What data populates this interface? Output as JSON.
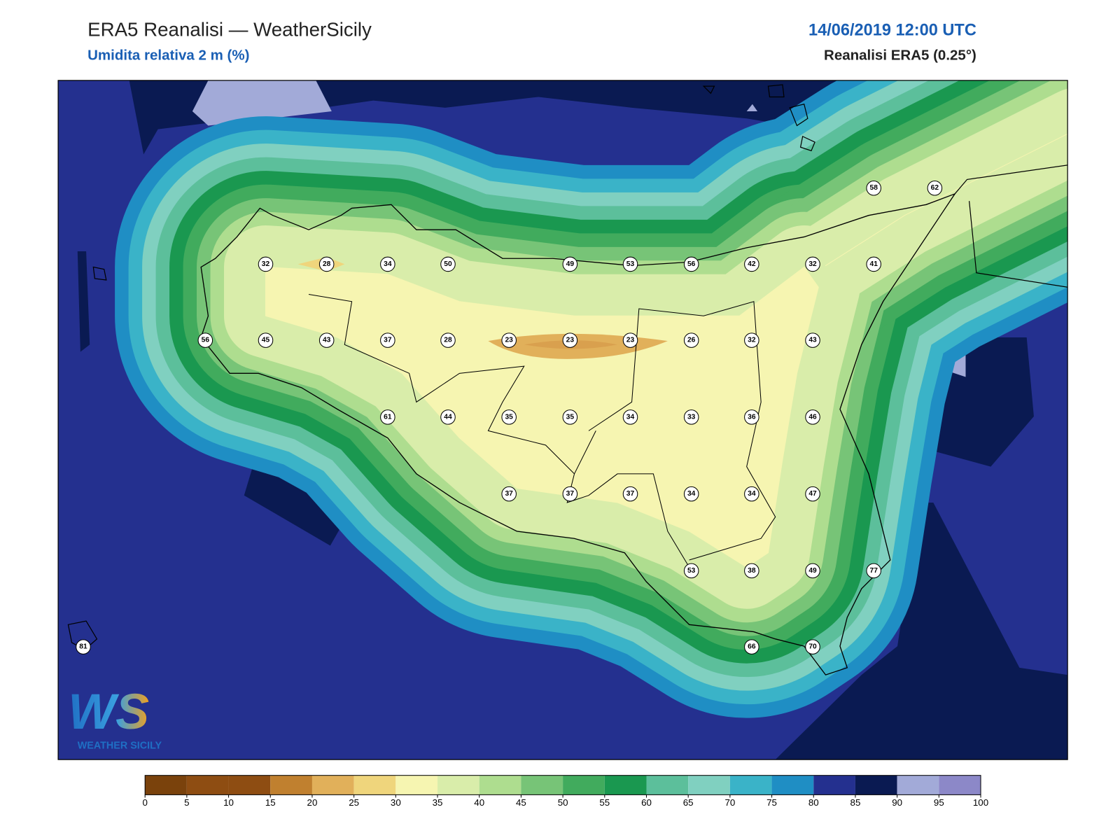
{
  "header": {
    "title": "ERA5 Reanalisi — WeatherSicily",
    "subtitle": "Umidita relativa 2 m (%)",
    "datetime": "14/06/2019 12:00 UTC",
    "source": "Reanalisi ERA5 (0.25°)"
  },
  "stations": [
    32,
    28,
    34,
    50,
    49,
    53,
    56,
    42,
    32,
    41,
    58,
    62,
    56,
    45,
    43,
    37,
    28,
    23,
    23,
    23,
    26,
    32,
    43,
    61,
    44,
    35,
    35,
    34,
    33,
    36,
    46,
    37,
    37,
    37,
    34,
    34,
    47,
    53,
    38,
    49,
    77,
    81,
    66,
    70
  ],
  "colorbar": {
    "ticks": [
      0,
      5,
      10,
      15,
      20,
      25,
      30,
      35,
      40,
      45,
      50,
      55,
      60,
      65,
      70,
      75,
      80,
      85,
      90,
      95,
      100
    ],
    "colors": [
      "#7a420c",
      "#8e4d12",
      "#8e4d12",
      "#c0802f",
      "#e1b05a",
      "#efd57c",
      "#f6f5b1",
      "#d9edaa",
      "#aedd8f",
      "#77c477",
      "#41ab5d",
      "#1a9850",
      "#5cbf9b",
      "#80d0c0",
      "#3ab3c8",
      "#1f8ec4",
      "#24308f",
      "#0a1a52",
      "#a2aad8",
      "#8c88c8"
    ]
  },
  "logo": {
    "mark": "WS",
    "text": "WEATHER SICILY"
  }
}
